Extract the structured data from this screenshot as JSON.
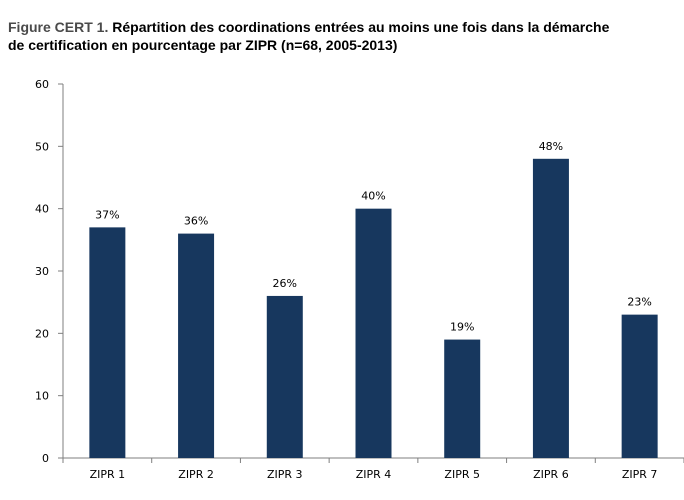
{
  "title": {
    "prefix": "Figure CERT 1.",
    "line1": "Répartition des coordinations entrées au moins une fois dans la démarche",
    "line2": "de certification en pourcentage par ZIPR (n=68, 2005-2013)"
  },
  "colors": {
    "bar": "#17375e",
    "axis": "#7f7f7f"
  },
  "chart_data": {
    "type": "bar",
    "categories": [
      "ZIPR 1",
      "ZIPR 2",
      "ZIPR 3",
      "ZIPR 4",
      "ZIPR 5",
      "ZIPR 6",
      "ZIPR 7"
    ],
    "values": [
      37,
      36,
      26,
      40,
      19,
      48,
      23
    ],
    "data_labels": [
      "37%",
      "36%",
      "26%",
      "40%",
      "19%",
      "48%",
      "23%"
    ],
    "yticks": [
      "0",
      "10",
      "20",
      "30",
      "40",
      "50",
      "60"
    ],
    "ylim": [
      0,
      60
    ],
    "grid": false,
    "legend": "none"
  }
}
